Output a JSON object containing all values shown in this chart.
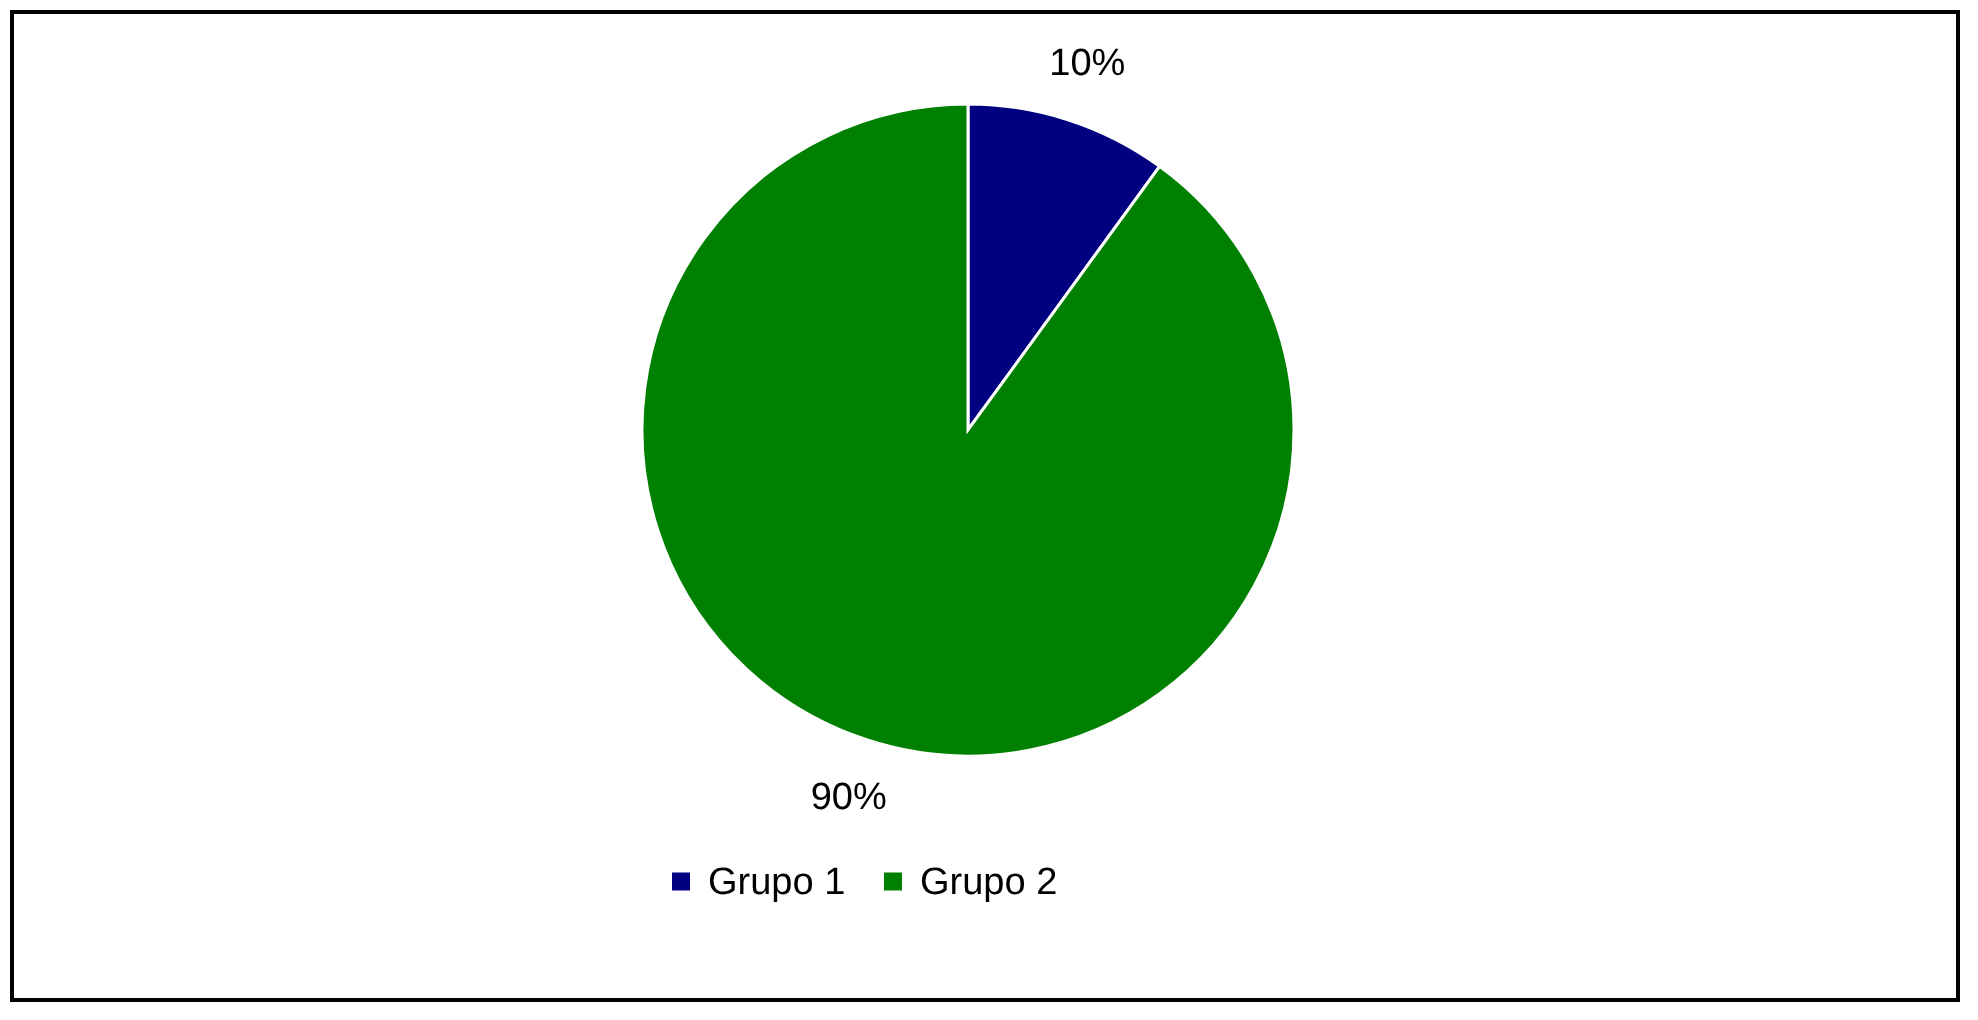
{
  "chart_data": {
    "type": "pie",
    "categories": [
      "Grupo 1",
      "Grupo 2"
    ],
    "values": [
      10,
      90
    ],
    "colors": [
      "#000080",
      "#008000"
    ],
    "value_labels": [
      "10%",
      "90%"
    ],
    "legend": "bottom"
  }
}
